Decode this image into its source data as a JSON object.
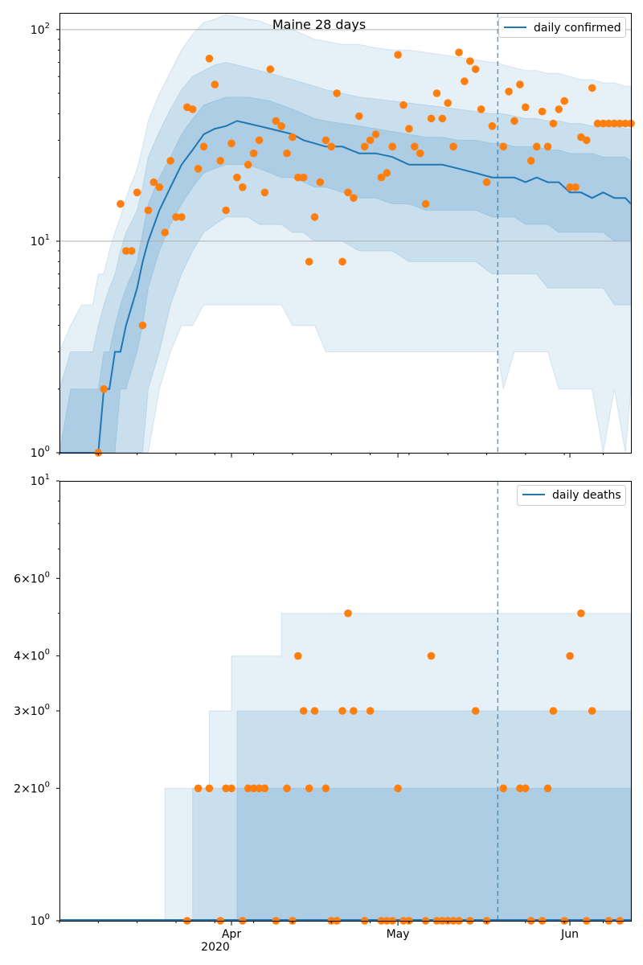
{
  "figure": {
    "title": "Maine 28 days",
    "x_tick_labels": [
      "Apr",
      "May",
      "Jun"
    ],
    "x_year_label": "2020",
    "colors": {
      "line": "#1f77b4",
      "points": "#ff7f0e",
      "band": "#1f77b4",
      "grid": "#b0b0b0"
    }
  },
  "chart_data": [
    {
      "type": "line",
      "panel": "top",
      "title": "Maine 28 days",
      "yscale": "log",
      "ylim": [
        1,
        120
      ],
      "y_tick_labels": [
        "10^0",
        "10^1",
        "10^2"
      ],
      "xlim": [
        "2020-03-01",
        "2020-06-12"
      ],
      "grid": "horizontal-major",
      "legend": {
        "position": "top-right",
        "entries": [
          "daily confirmed"
        ]
      },
      "forecast_start": "2020-05-19",
      "series": [
        {
          "name": "daily confirmed",
          "kind": "line",
          "x": [
            "2020-03-01",
            "2020-03-03",
            "2020-03-05",
            "2020-03-07",
            "2020-03-08",
            "2020-03-09",
            "2020-03-10",
            "2020-03-11",
            "2020-03-12",
            "2020-03-13",
            "2020-03-15",
            "2020-03-16",
            "2020-03-17",
            "2020-03-19",
            "2020-03-21",
            "2020-03-23",
            "2020-03-25",
            "2020-03-27",
            "2020-03-29",
            "2020-03-31",
            "2020-04-02",
            "2020-04-04",
            "2020-04-06",
            "2020-04-08",
            "2020-04-10",
            "2020-04-12",
            "2020-04-14",
            "2020-04-16",
            "2020-04-18",
            "2020-04-21",
            "2020-04-24",
            "2020-04-27",
            "2020-04-30",
            "2020-05-03",
            "2020-05-06",
            "2020-05-09",
            "2020-05-12",
            "2020-05-15",
            "2020-05-18",
            "2020-05-19",
            "2020-05-20",
            "2020-05-22",
            "2020-05-24",
            "2020-05-26",
            "2020-05-28",
            "2020-05-30",
            "2020-06-01",
            "2020-06-03",
            "2020-06-05",
            "2020-06-07",
            "2020-06-09",
            "2020-06-11",
            "2020-06-12"
          ],
          "y": [
            1,
            1,
            1,
            1,
            1,
            2,
            2,
            3,
            3,
            4,
            6,
            8,
            10,
            14,
            18,
            23,
            27,
            32,
            34,
            35,
            37,
            36,
            35,
            34,
            33,
            32,
            30,
            29,
            28,
            28,
            26,
            26,
            25,
            23,
            23,
            23,
            22,
            21,
            20,
            20,
            20,
            20,
            19,
            20,
            19,
            19,
            17,
            17,
            16,
            17,
            16,
            16,
            15
          ]
        },
        {
          "name": "confirmed observed",
          "kind": "scatter",
          "x": [
            "2020-03-08",
            "2020-03-09",
            "2020-03-12",
            "2020-03-13",
            "2020-03-14",
            "2020-03-15",
            "2020-03-16",
            "2020-03-17",
            "2020-03-18",
            "2020-03-19",
            "2020-03-20",
            "2020-03-21",
            "2020-03-22",
            "2020-03-23",
            "2020-03-24",
            "2020-03-25",
            "2020-03-26",
            "2020-03-27",
            "2020-03-28",
            "2020-03-29",
            "2020-03-30",
            "2020-03-31",
            "2020-04-01",
            "2020-04-02",
            "2020-04-03",
            "2020-04-04",
            "2020-04-05",
            "2020-04-06",
            "2020-04-07",
            "2020-04-08",
            "2020-04-09",
            "2020-04-10",
            "2020-04-11",
            "2020-04-12",
            "2020-04-13",
            "2020-04-14",
            "2020-04-15",
            "2020-04-16",
            "2020-04-17",
            "2020-04-18",
            "2020-04-19",
            "2020-04-20",
            "2020-04-21",
            "2020-04-22",
            "2020-04-23",
            "2020-04-24",
            "2020-04-25",
            "2020-04-26",
            "2020-04-27",
            "2020-04-28",
            "2020-04-29",
            "2020-04-30",
            "2020-05-01",
            "2020-05-02",
            "2020-05-03",
            "2020-05-04",
            "2020-05-05",
            "2020-05-06",
            "2020-05-07",
            "2020-05-08",
            "2020-05-09",
            "2020-05-10",
            "2020-05-11",
            "2020-05-12",
            "2020-05-13",
            "2020-05-14",
            "2020-05-15",
            "2020-05-16",
            "2020-05-17",
            "2020-05-18",
            "2020-05-20",
            "2020-05-21",
            "2020-05-22",
            "2020-05-23",
            "2020-05-24",
            "2020-05-25",
            "2020-05-26",
            "2020-05-27",
            "2020-05-28",
            "2020-05-29",
            "2020-05-30",
            "2020-05-31",
            "2020-06-01",
            "2020-06-02",
            "2020-06-03",
            "2020-06-04",
            "2020-06-05",
            "2020-06-06",
            "2020-06-07",
            "2020-06-08",
            "2020-06-09",
            "2020-06-10",
            "2020-06-11",
            "2020-06-12"
          ],
          "y": [
            1,
            2,
            15,
            9,
            9,
            17,
            4,
            14,
            19,
            18,
            11,
            24,
            13,
            13,
            43,
            42,
            22,
            28,
            73,
            55,
            24,
            14,
            29,
            20,
            18,
            23,
            26,
            30,
            17,
            65,
            37,
            35,
            26,
            31,
            20,
            20,
            8,
            13,
            19,
            30,
            28,
            50,
            8,
            17,
            16,
            39,
            28,
            30,
            32,
            20,
            21,
            28,
            76,
            44,
            34,
            28,
            26,
            15,
            38,
            50,
            38,
            45,
            28,
            78,
            57,
            71,
            65,
            42,
            19,
            35,
            28,
            51,
            37,
            55,
            43,
            24,
            28,
            41,
            28,
            36,
            42,
            46,
            18,
            18,
            31,
            30,
            53,
            36,
            36,
            36,
            36,
            36,
            36,
            36
          ]
        }
      ],
      "bands": [
        {
          "quantiles": "2.5-97.5",
          "lower": [
            1,
            1,
            1,
            1,
            1,
            1,
            1,
            1,
            1,
            1,
            1,
            1,
            1,
            2,
            3,
            4,
            4,
            5,
            5,
            5,
            5,
            5,
            5,
            5,
            5,
            4,
            4,
            4,
            3,
            3,
            3,
            3,
            3,
            3,
            3,
            3,
            3,
            3,
            3,
            3,
            2,
            3,
            3,
            3,
            3,
            2,
            2,
            2,
            2,
            1,
            2,
            1,
            2
          ],
          "upper": [
            3,
            4,
            5,
            5,
            7,
            7,
            9,
            11,
            13,
            16,
            22,
            28,
            37,
            50,
            63,
            80,
            95,
            108,
            112,
            118,
            115,
            112,
            110,
            105,
            103,
            100,
            95,
            90,
            88,
            85,
            85,
            82,
            80,
            80,
            78,
            76,
            74,
            72,
            70,
            70,
            68,
            66,
            64,
            64,
            62,
            62,
            60,
            58,
            58,
            56,
            56,
            54,
            54
          ]
        },
        {
          "quantiles": "10-90",
          "lower": [
            1,
            1,
            1,
            1,
            1,
            1,
            1,
            1,
            1,
            1,
            1,
            1,
            2,
            3,
            5,
            7,
            9,
            11,
            12,
            13,
            13,
            13,
            12,
            12,
            12,
            11,
            11,
            10,
            10,
            10,
            9,
            9,
            9,
            8,
            8,
            8,
            8,
            8,
            7,
            7,
            7,
            7,
            7,
            7,
            6,
            6,
            6,
            6,
            6,
            6,
            5,
            5,
            5
          ],
          "upper": [
            2,
            3,
            3,
            3,
            4,
            5,
            6,
            7,
            9,
            11,
            14,
            18,
            25,
            33,
            42,
            52,
            60,
            64,
            68,
            70,
            68,
            66,
            64,
            62,
            60,
            58,
            56,
            54,
            52,
            50,
            48,
            47,
            46,
            45,
            44,
            43,
            42,
            41,
            40,
            40,
            40,
            39,
            38,
            38,
            37,
            37,
            36,
            36,
            35,
            35,
            35,
            34,
            34
          ]
        },
        {
          "quantiles": "25-75",
          "lower": [
            1,
            1,
            1,
            1,
            1,
            1,
            1,
            1,
            2,
            2,
            3,
            4,
            6,
            9,
            12,
            15,
            18,
            21,
            22,
            23,
            23,
            23,
            22,
            21,
            20,
            20,
            19,
            18,
            18,
            17,
            16,
            16,
            15,
            15,
            14,
            14,
            14,
            14,
            13,
            13,
            13,
            13,
            12,
            12,
            12,
            11,
            11,
            11,
            11,
            11,
            10,
            10,
            10
          ],
          "upper": [
            1,
            2,
            2,
            2,
            2,
            3,
            3,
            4,
            5,
            6,
            8,
            11,
            15,
            20,
            25,
            32,
            38,
            44,
            46,
            48,
            48,
            48,
            47,
            46,
            44,
            42,
            40,
            38,
            37,
            36,
            35,
            34,
            33,
            32,
            31,
            31,
            30,
            30,
            29,
            29,
            29,
            28,
            28,
            28,
            27,
            27,
            26,
            26,
            26,
            25,
            25,
            25,
            24
          ]
        }
      ]
    },
    {
      "type": "line",
      "panel": "bottom",
      "yscale": "log",
      "ylim": [
        1,
        10
      ],
      "y_tick_labels": [
        "10^0",
        "2×10^0",
        "3×10^0",
        "4×10^0",
        "6×10^0",
        "10^1"
      ],
      "xlim": [
        "2020-03-01",
        "2020-06-12"
      ],
      "legend": {
        "position": "top-right",
        "entries": [
          "daily deaths"
        ]
      },
      "forecast_start": "2020-05-19",
      "series": [
        {
          "name": "daily deaths",
          "kind": "line",
          "x": [
            "2020-03-01",
            "2020-06-12"
          ],
          "y": [
            1,
            1
          ]
        },
        {
          "name": "deaths observed",
          "kind": "scatter",
          "x": [
            "2020-03-24",
            "2020-03-26",
            "2020-03-28",
            "2020-03-30",
            "2020-03-31",
            "2020-04-01",
            "2020-04-03",
            "2020-04-04",
            "2020-04-05",
            "2020-04-06",
            "2020-04-07",
            "2020-04-09",
            "2020-04-11",
            "2020-04-12",
            "2020-04-13",
            "2020-04-14",
            "2020-04-15",
            "2020-04-16",
            "2020-04-18",
            "2020-04-19",
            "2020-04-20",
            "2020-04-21",
            "2020-04-22",
            "2020-04-23",
            "2020-04-25",
            "2020-04-26",
            "2020-04-28",
            "2020-04-29",
            "2020-04-30",
            "2020-05-01",
            "2020-05-02",
            "2020-05-03",
            "2020-05-06",
            "2020-05-07",
            "2020-05-08",
            "2020-05-09",
            "2020-05-10",
            "2020-05-11",
            "2020-05-12",
            "2020-05-14",
            "2020-05-15",
            "2020-05-17",
            "2020-05-20",
            "2020-05-23",
            "2020-05-24",
            "2020-05-25",
            "2020-05-27",
            "2020-05-28",
            "2020-05-29",
            "2020-05-31",
            "2020-06-01",
            "2020-06-03",
            "2020-06-04",
            "2020-06-05",
            "2020-06-08",
            "2020-06-10"
          ],
          "y": [
            1,
            2,
            2,
            1,
            2,
            2,
            1,
            2,
            2,
            2,
            2,
            1,
            2,
            1,
            4,
            3,
            2,
            3,
            2,
            1,
            1,
            3,
            5,
            3,
            1,
            3,
            1,
            1,
            1,
            2,
            1,
            1,
            1,
            4,
            1,
            1,
            1,
            1,
            1,
            1,
            3,
            1,
            2,
            2,
            2,
            1,
            1,
            2,
            3,
            1,
            4,
            5,
            1,
            3,
            1,
            1
          ]
        }
      ],
      "bands": [
        {
          "quantiles": "2.5-97.5",
          "x_from": "2020-03-20",
          "segments": [
            {
              "from": "2020-03-20",
              "to": "2020-03-28",
              "upper": 2
            },
            {
              "from": "2020-03-28",
              "to": "2020-04-01",
              "upper": 3
            },
            {
              "from": "2020-04-01",
              "to": "2020-04-10",
              "upper": 4
            },
            {
              "from": "2020-04-10",
              "to": "2020-06-12",
              "upper": 5
            }
          ]
        },
        {
          "quantiles": "10-90",
          "segments": [
            {
              "from": "2020-03-25",
              "to": "2020-04-02",
              "upper": 2
            },
            {
              "from": "2020-04-02",
              "to": "2020-06-12",
              "upper": 3
            }
          ]
        },
        {
          "quantiles": "25-75",
          "segments": [
            {
              "from": "2020-04-02",
              "to": "2020-06-12",
              "upper": 2
            }
          ]
        }
      ]
    }
  ]
}
